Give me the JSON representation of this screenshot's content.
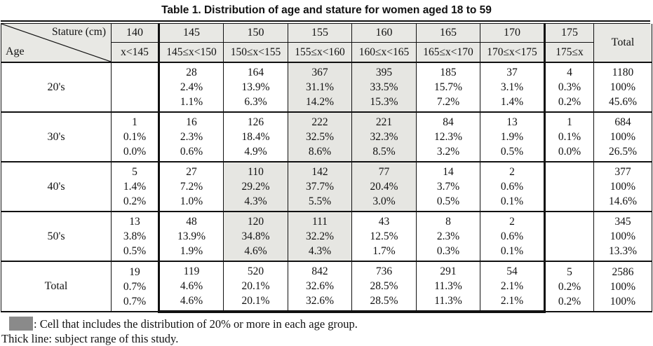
{
  "title": "Table 1. Distribution of age and stature for women aged 18 to 59",
  "colors": {
    "header_bg": "#e8e8e4",
    "highlight_bg": "#e6e6e2",
    "legend_swatch": "#8a8a8a",
    "border": "#111111"
  },
  "header": {
    "corner": {
      "top_right": "Stature (cm)",
      "bottom_left": "Age"
    },
    "columns": [
      {
        "value": "140",
        "range": "x<145"
      },
      {
        "value": "145",
        "range": "145≤x<150"
      },
      {
        "value": "150",
        "range": "150≤x<155"
      },
      {
        "value": "155",
        "range": "155≤x<160"
      },
      {
        "value": "160",
        "range": "160≤x<165"
      },
      {
        "value": "165",
        "range": "165≤x<170"
      },
      {
        "value": "170",
        "range": "170≤x<175"
      },
      {
        "value": "175",
        "range": "175≤x"
      }
    ],
    "total_label": "Total"
  },
  "rows": [
    {
      "label": "20's",
      "cells": [
        [],
        [
          "28",
          "2.4%",
          "1.1%"
        ],
        [
          "164",
          "13.9%",
          "6.3%"
        ],
        [
          "367",
          "31.1%",
          "14.2%"
        ],
        [
          "395",
          "33.5%",
          "15.3%"
        ],
        [
          "185",
          "15.7%",
          "7.2%"
        ],
        [
          "37",
          "3.1%",
          "1.4%"
        ],
        [
          "4",
          "0.3%",
          "0.2%"
        ]
      ],
      "highlights": [
        false,
        false,
        false,
        true,
        true,
        false,
        false,
        false
      ],
      "total": [
        "1180",
        "100%",
        "45.6%"
      ],
      "is_total": false
    },
    {
      "label": "30's",
      "cells": [
        [
          "1",
          "0.1%",
          "0.0%"
        ],
        [
          "16",
          "2.3%",
          "0.6%"
        ],
        [
          "126",
          "18.4%",
          "4.9%"
        ],
        [
          "222",
          "32.5%",
          "8.6%"
        ],
        [
          "221",
          "32.3%",
          "8.5%"
        ],
        [
          "84",
          "12.3%",
          "3.2%"
        ],
        [
          "13",
          "1.9%",
          "0.5%"
        ],
        [
          "1",
          "0.1%",
          "0.0%"
        ]
      ],
      "highlights": [
        false,
        false,
        false,
        true,
        true,
        false,
        false,
        false
      ],
      "total": [
        "684",
        "100%",
        "26.5%"
      ],
      "is_total": false
    },
    {
      "label": "40's",
      "cells": [
        [
          "5",
          "1.4%",
          "0.2%"
        ],
        [
          "27",
          "7.2%",
          "1.0%"
        ],
        [
          "110",
          "29.2%",
          "4.3%"
        ],
        [
          "142",
          "37.7%",
          "5.5%"
        ],
        [
          "77",
          "20.4%",
          "3.0%"
        ],
        [
          "14",
          "3.7%",
          "0.5%"
        ],
        [
          "2",
          "0.6%",
          "0.1%"
        ],
        []
      ],
      "highlights": [
        false,
        false,
        true,
        true,
        true,
        false,
        false,
        false
      ],
      "total": [
        "377",
        "100%",
        "14.6%"
      ],
      "is_total": false
    },
    {
      "label": "50's",
      "cells": [
        [
          "13",
          "3.8%",
          "0.5%"
        ],
        [
          "48",
          "13.9%",
          "1.9%"
        ],
        [
          "120",
          "34.8%",
          "4.6%"
        ],
        [
          "111",
          "32.2%",
          "4.3%"
        ],
        [
          "43",
          "12.5%",
          "1.7%"
        ],
        [
          "8",
          "2.3%",
          "0.3%"
        ],
        [
          "2",
          "0.6%",
          "0.1%"
        ],
        []
      ],
      "highlights": [
        false,
        false,
        true,
        true,
        false,
        false,
        false,
        false
      ],
      "total": [
        "345",
        "100%",
        "13.3%"
      ],
      "is_total": false
    },
    {
      "label": "Total",
      "cells": [
        [
          "19",
          "0.7%",
          "0.7%"
        ],
        [
          "119",
          "4.6%",
          "4.6%"
        ],
        [
          "520",
          "20.1%",
          "20.1%"
        ],
        [
          "842",
          "32.6%",
          "32.6%"
        ],
        [
          "736",
          "28.5%",
          "28.5%"
        ],
        [
          "291",
          "11.3%",
          "11.3%"
        ],
        [
          "54",
          "2.1%",
          "2.1%"
        ],
        [
          "5",
          "0.2%",
          "0.2%"
        ]
      ],
      "highlights": [
        false,
        false,
        false,
        false,
        false,
        false,
        false,
        false
      ],
      "total": [
        "2586",
        "100%",
        "100%"
      ],
      "is_total": true
    }
  ],
  "legend": {
    "shaded_note": ": Cell that includes the distribution of 20% or more in each age group.",
    "thick_note": "Thick line: subject range of this study."
  }
}
